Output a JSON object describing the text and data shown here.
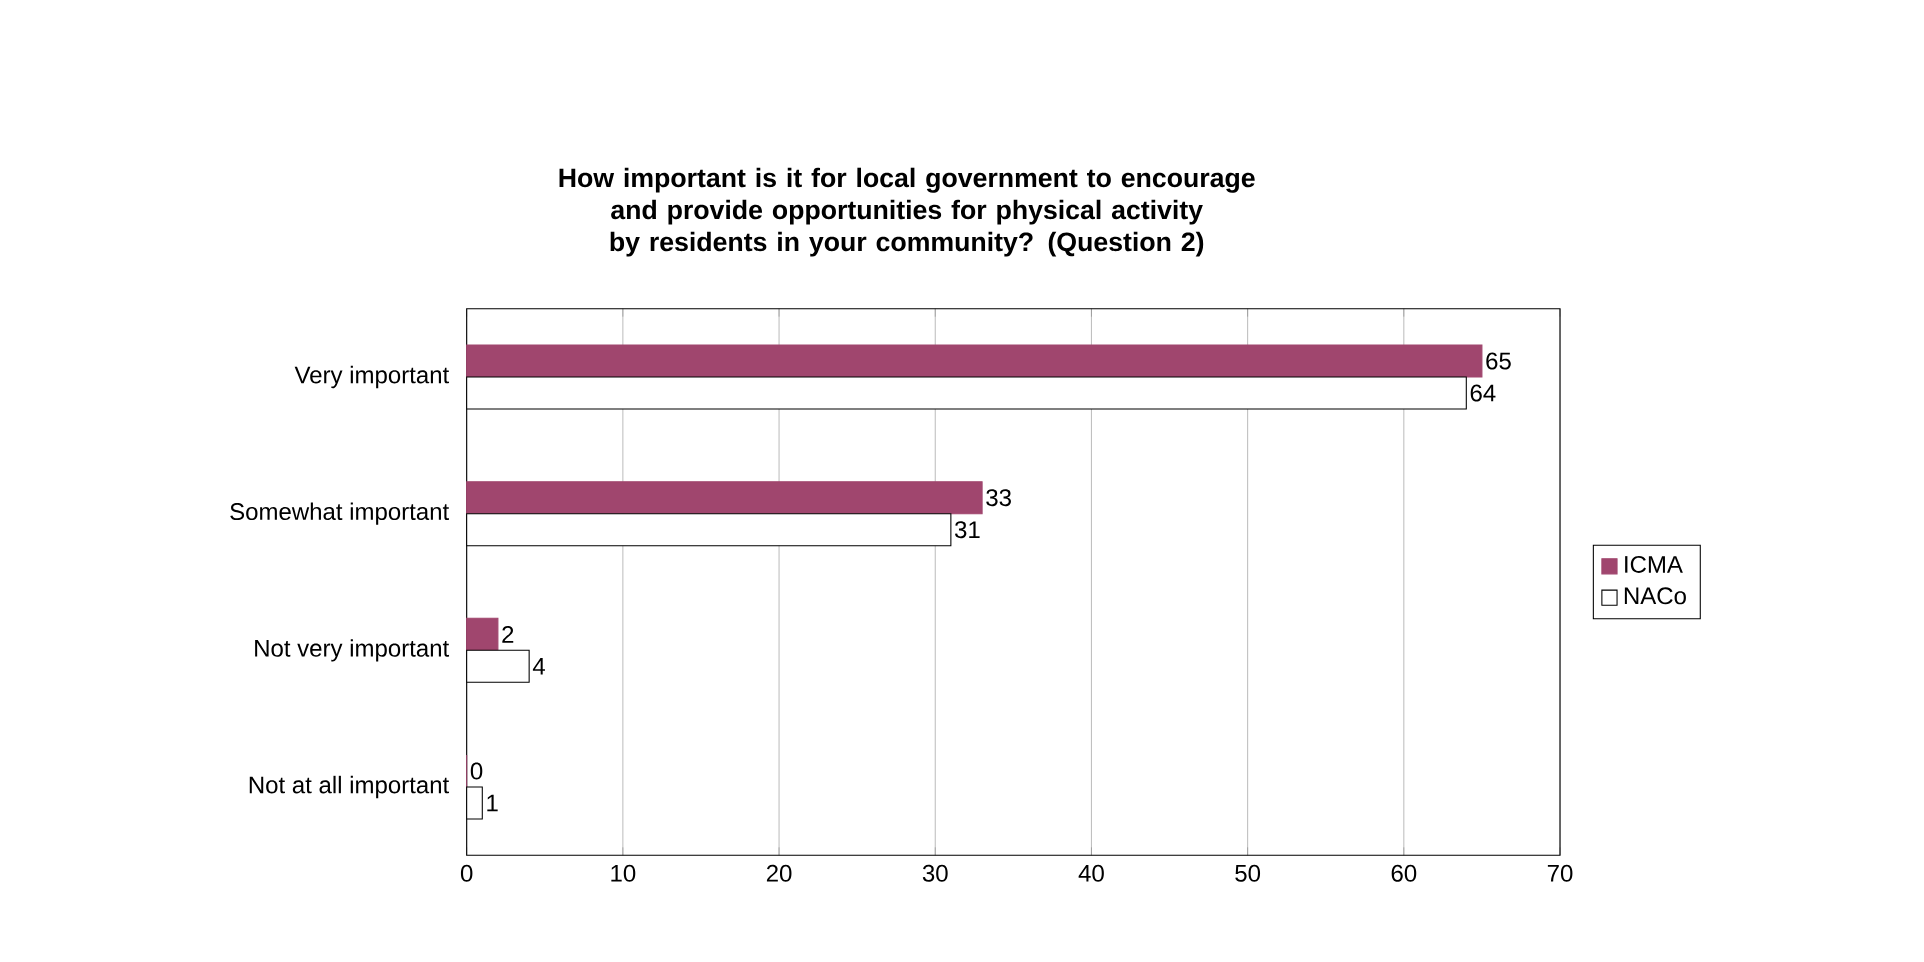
{
  "chart_data": {
    "type": "bar",
    "orientation": "horizontal",
    "title": "How important is it for local government to encourage and provide opportunities for physical activity by residents in your community? (Question 2)",
    "categories": [
      "Very important",
      "Somewhat important",
      "Not very important",
      "Not at all important"
    ],
    "series": [
      {
        "name": "ICMA",
        "color": "#a0466e",
        "values": [
          65,
          33,
          2,
          0
        ]
      },
      {
        "name": "NACo",
        "color": "#ffffff",
        "values": [
          64,
          31,
          4,
          1
        ]
      }
    ],
    "xlim": [
      0,
      70
    ],
    "xticks": [
      0,
      10,
      20,
      30,
      40,
      50,
      60,
      70
    ],
    "grid": "x",
    "legend": "right",
    "data_labels": true
  }
}
